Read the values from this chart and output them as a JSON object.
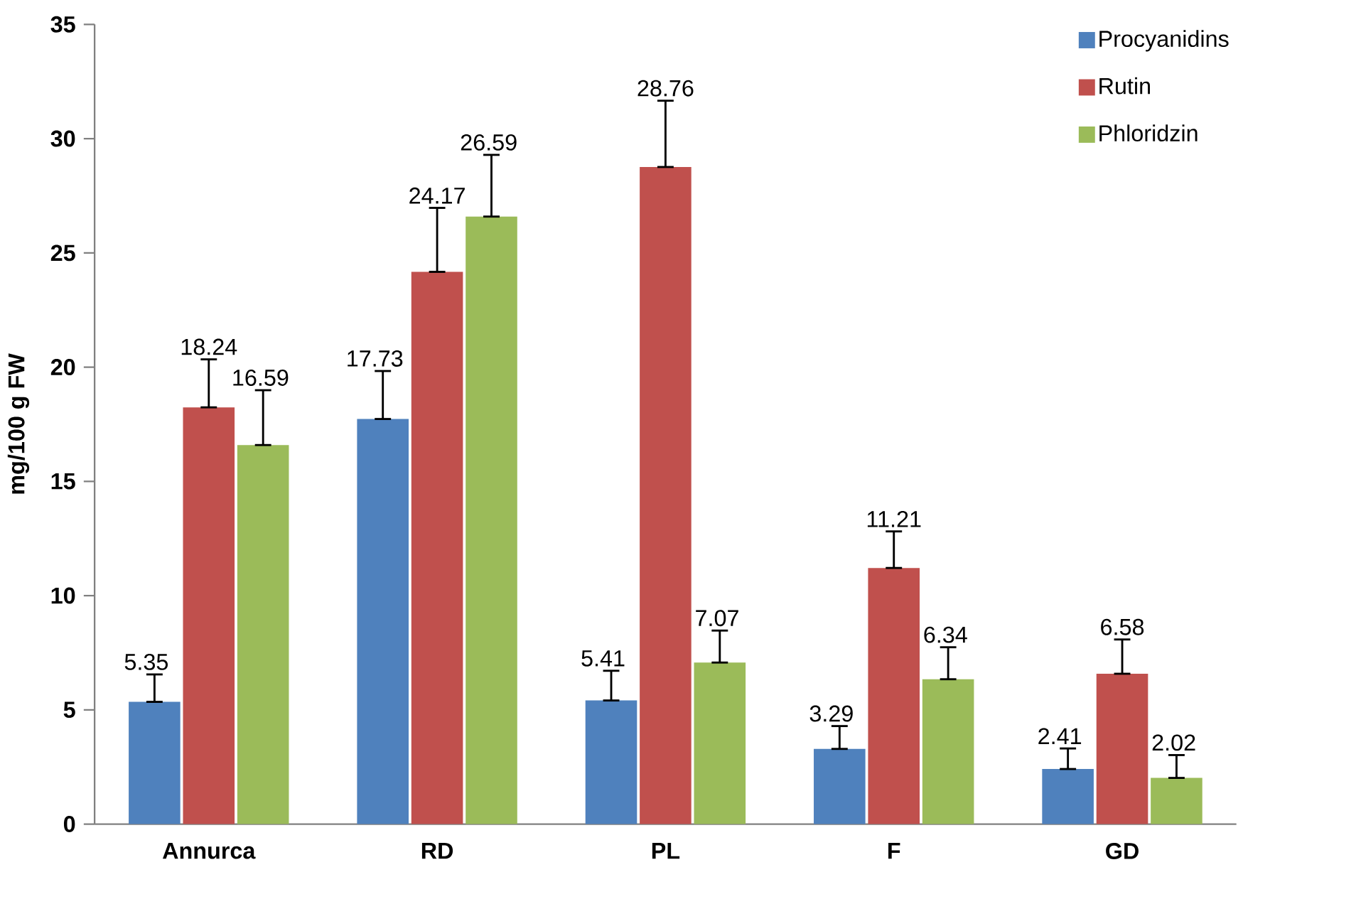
{
  "chart_data": {
    "type": "bar",
    "ylabel": "mg/100 g FW",
    "categories": [
      "Annurca",
      "RD",
      "PL",
      "F",
      "GD"
    ],
    "series": [
      {
        "name": "Procyanidins",
        "color": "#4f81bd",
        "values": [
          5.35,
          17.73,
          5.41,
          3.29,
          2.41
        ],
        "errors": [
          [
            5.35,
            6.55
          ],
          [
            17.73,
            19.83
          ],
          [
            5.41,
            6.71
          ],
          [
            3.29,
            4.29
          ],
          [
            2.41,
            3.31
          ]
        ]
      },
      {
        "name": "Rutin",
        "color": "#c0504d",
        "values": [
          18.24,
          24.17,
          28.76,
          11.21,
          6.58
        ],
        "errors": [
          [
            18.24,
            20.34
          ],
          [
            24.17,
            26.97
          ],
          [
            28.76,
            31.66
          ],
          [
            11.21,
            12.81
          ],
          [
            6.58,
            8.08
          ]
        ]
      },
      {
        "name": "Phloridzin",
        "color": "#9bbb59",
        "values": [
          16.59,
          26.59,
          7.07,
          6.34,
          2.02
        ],
        "errors": [
          [
            16.59,
            18.99
          ],
          [
            26.59,
            29.29
          ],
          [
            7.07,
            8.47
          ],
          [
            6.34,
            7.74
          ],
          [
            2.02,
            3.02
          ]
        ]
      }
    ],
    "ylim": [
      0,
      35
    ],
    "yticks": [
      0,
      5,
      10,
      15,
      20,
      25,
      30,
      35
    ],
    "data_labels": true,
    "legend": "top right",
    "grid": false
  }
}
